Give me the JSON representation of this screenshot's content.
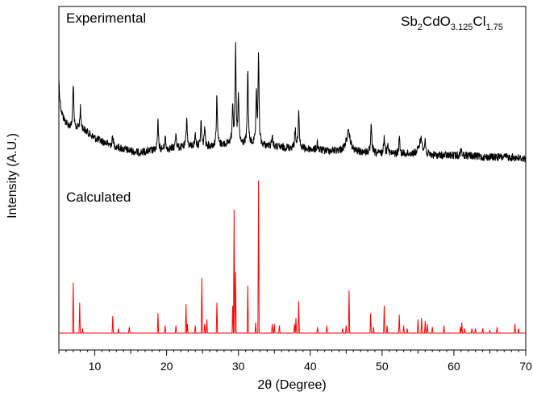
{
  "chart_data": {
    "type": "line",
    "xlabel": "2θ (Degree)",
    "ylabel": "Intensity (A.U.)",
    "xlim": [
      5,
      70
    ],
    "x_ticks": [
      10,
      20,
      30,
      40,
      50,
      60,
      70
    ],
    "y_ticks_shown": false,
    "grid": false,
    "annotations": {
      "top_series_label": "Experimental",
      "bottom_series_label": "Calculated",
      "formula": {
        "base1": "Sb",
        "sub1": "2",
        "base2": "CdO",
        "sub2": "3.125",
        "base3": "Cl",
        "sub3": "1.75"
      }
    },
    "series": [
      {
        "name": "Experimental",
        "color": "#000000",
        "baseline_points": [
          [
            5,
            0.52
          ],
          [
            6,
            0.58
          ],
          [
            7,
            0.62
          ],
          [
            8,
            0.6
          ],
          [
            10,
            0.67
          ],
          [
            12,
            0.71
          ],
          [
            14,
            0.74
          ],
          [
            16,
            0.76
          ],
          [
            18,
            0.75
          ],
          [
            20,
            0.74
          ],
          [
            22,
            0.73
          ],
          [
            24,
            0.72
          ],
          [
            26,
            0.72
          ],
          [
            28,
            0.71
          ],
          [
            29,
            0.7
          ],
          [
            30,
            0.71
          ],
          [
            32,
            0.71
          ],
          [
            34,
            0.72
          ],
          [
            36,
            0.73
          ],
          [
            38,
            0.73
          ],
          [
            40,
            0.74
          ],
          [
            42,
            0.75
          ],
          [
            44,
            0.75
          ],
          [
            46,
            0.76
          ],
          [
            48,
            0.76
          ],
          [
            50,
            0.77
          ],
          [
            52,
            0.77
          ],
          [
            54,
            0.77
          ],
          [
            56,
            0.78
          ],
          [
            58,
            0.78
          ],
          [
            60,
            0.78
          ],
          [
            62,
            0.78
          ],
          [
            64,
            0.79
          ],
          [
            66,
            0.79
          ],
          [
            68,
            0.79
          ],
          [
            70,
            0.8
          ]
        ],
        "peaks": [
          [
            4.9,
            0.28,
            0.2
          ],
          [
            7.0,
            0.3,
            0.08
          ],
          [
            8.0,
            0.12,
            0.08
          ],
          [
            12.5,
            0.06,
            0.08
          ],
          [
            18.8,
            0.18,
            0.08
          ],
          [
            19.8,
            0.08,
            0.08
          ],
          [
            21.3,
            0.1,
            0.08
          ],
          [
            22.8,
            0.2,
            0.08
          ],
          [
            24.0,
            0.08,
            0.08
          ],
          [
            24.8,
            0.15,
            0.08
          ],
          [
            25.3,
            0.12,
            0.08
          ],
          [
            27.0,
            0.32,
            0.08
          ],
          [
            29.2,
            0.25,
            0.08
          ],
          [
            29.6,
            0.6,
            0.08
          ],
          [
            30.0,
            0.3,
            0.08
          ],
          [
            31.3,
            0.47,
            0.08
          ],
          [
            32.5,
            0.3,
            0.08
          ],
          [
            32.8,
            0.55,
            0.08
          ],
          [
            34.7,
            0.08,
            0.08
          ],
          [
            37.9,
            0.12,
            0.08
          ],
          [
            38.4,
            0.24,
            0.08
          ],
          [
            41.0,
            0.05,
            0.08
          ],
          [
            45.3,
            0.12,
            0.35
          ],
          [
            48.5,
            0.18,
            0.08
          ],
          [
            50.3,
            0.12,
            0.08
          ],
          [
            50.8,
            0.08,
            0.08
          ],
          [
            52.4,
            0.1,
            0.08
          ],
          [
            55.4,
            0.1,
            0.3
          ],
          [
            56.0,
            0.08,
            0.08
          ],
          [
            61.0,
            0.05,
            0.08
          ]
        ],
        "noise_amplitude": 0.025
      },
      {
        "name": "Calculated",
        "color": "#ff0000",
        "baseline": 0,
        "peaks": [
          [
            7.0,
            0.33
          ],
          [
            7.9,
            0.2
          ],
          [
            8.3,
            0.03
          ],
          [
            12.5,
            0.11
          ],
          [
            13.3,
            0.03
          ],
          [
            14.8,
            0.04
          ],
          [
            18.8,
            0.13
          ],
          [
            19.8,
            0.05
          ],
          [
            21.3,
            0.05
          ],
          [
            22.7,
            0.19
          ],
          [
            22.9,
            0.06
          ],
          [
            24.0,
            0.05
          ],
          [
            24.9,
            0.36
          ],
          [
            25.3,
            0.06
          ],
          [
            25.6,
            0.09
          ],
          [
            27.0,
            0.2
          ],
          [
            29.2,
            0.18
          ],
          [
            29.4,
            0.81
          ],
          [
            29.6,
            0.4
          ],
          [
            31.3,
            0.31
          ],
          [
            32.4,
            0.07
          ],
          [
            32.8,
            1.0
          ],
          [
            34.7,
            0.06
          ],
          [
            35.0,
            0.06
          ],
          [
            35.7,
            0.05
          ],
          [
            37.8,
            0.06
          ],
          [
            38.0,
            0.1
          ],
          [
            38.4,
            0.21
          ],
          [
            41.0,
            0.04
          ],
          [
            42.3,
            0.05
          ],
          [
            44.5,
            0.03
          ],
          [
            45.0,
            0.05
          ],
          [
            45.4,
            0.28
          ],
          [
            48.4,
            0.13
          ],
          [
            48.8,
            0.04
          ],
          [
            50.3,
            0.18
          ],
          [
            50.7,
            0.05
          ],
          [
            52.4,
            0.12
          ],
          [
            53.0,
            0.05
          ],
          [
            53.5,
            0.03
          ],
          [
            55.0,
            0.09
          ],
          [
            55.5,
            0.1
          ],
          [
            56.0,
            0.08
          ],
          [
            56.3,
            0.06
          ],
          [
            57.0,
            0.04
          ],
          [
            58.6,
            0.05
          ],
          [
            60.9,
            0.04
          ],
          [
            61.1,
            0.07
          ],
          [
            61.5,
            0.03
          ],
          [
            62.5,
            0.03
          ],
          [
            63.0,
            0.03
          ],
          [
            64.0,
            0.03
          ],
          [
            65.0,
            0.02
          ],
          [
            66.0,
            0.04
          ],
          [
            68.5,
            0.06
          ],
          [
            69.0,
            0.03
          ]
        ]
      }
    ]
  }
}
